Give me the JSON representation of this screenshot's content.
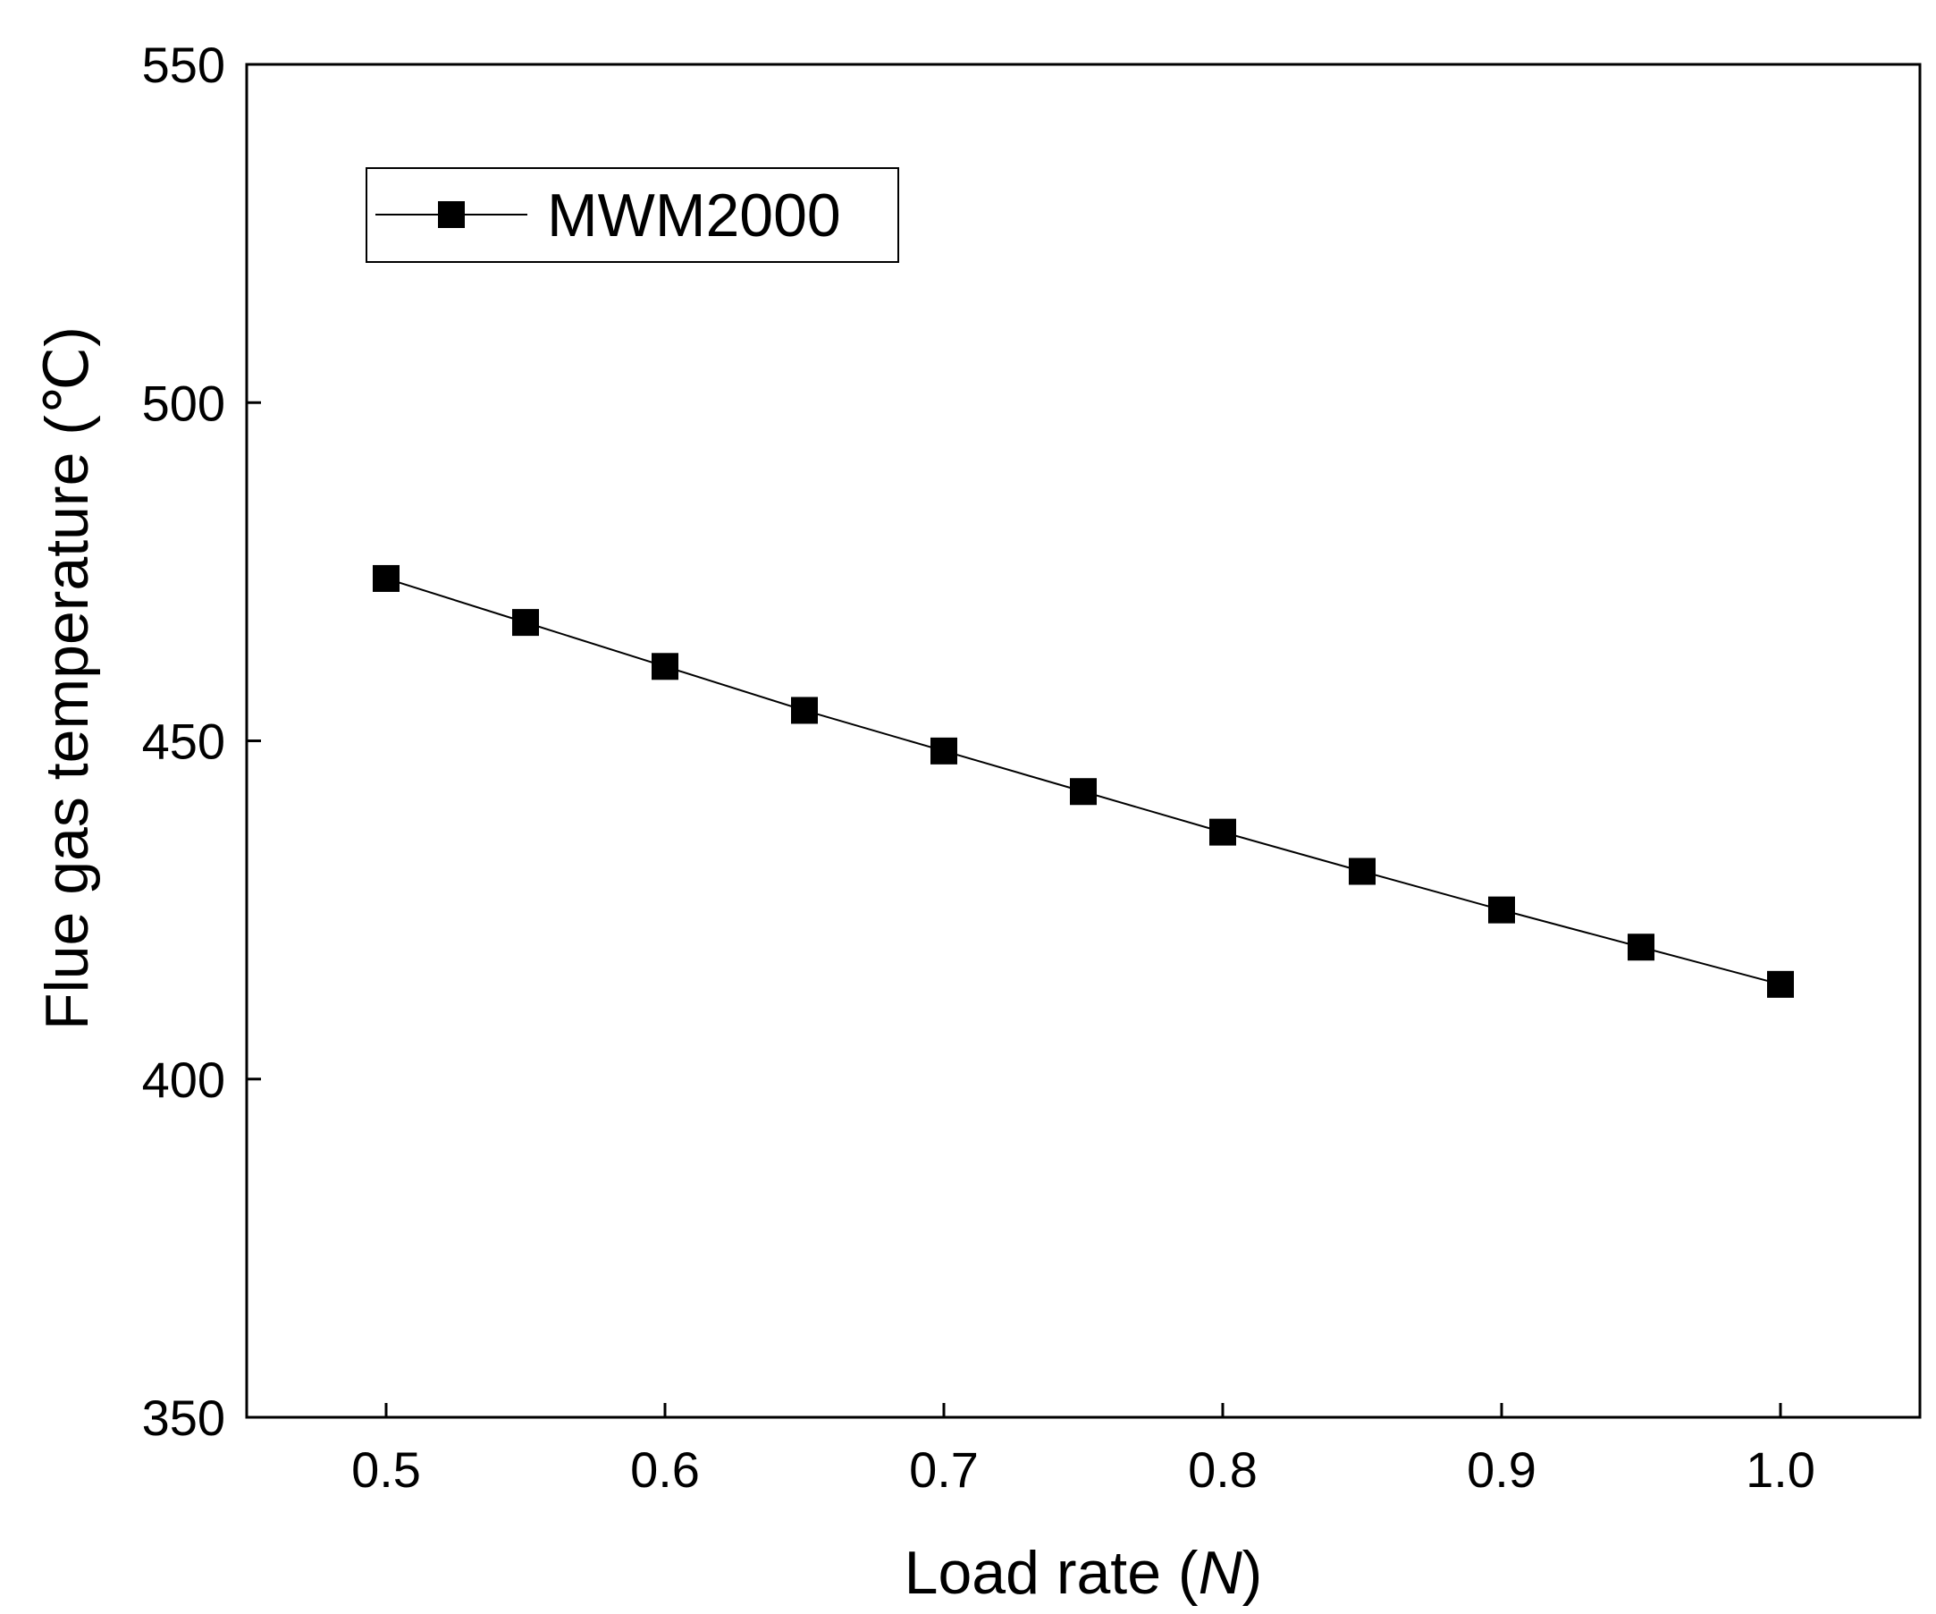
{
  "chart_data": {
    "type": "line",
    "title": "",
    "xlabel": "Load rate (",
    "xlabel_symbol": "N",
    "xlabel_close": ")",
    "ylabel": "Flue gas temperature (℃)",
    "xlim": [
      0.45,
      1.05
    ],
    "ylim": [
      350,
      550
    ],
    "xticks": [
      0.5,
      0.6,
      0.7,
      0.8,
      0.9,
      1.0
    ],
    "xtick_labels": [
      "0.5",
      "0.6",
      "0.7",
      "0.8",
      "0.9",
      "1.0"
    ],
    "yticks": [
      350,
      400,
      450,
      500,
      550
    ],
    "ytick_labels": [
      "350",
      "400",
      "450",
      "500",
      "550"
    ],
    "legend_position": "top-left",
    "grid": false,
    "series": [
      {
        "name": "MWM2000",
        "marker": "square",
        "color": "#000000",
        "x": [
          0.5,
          0.55,
          0.6,
          0.65,
          0.7,
          0.75,
          0.8,
          0.85,
          0.9,
          0.95,
          1.0
        ],
        "y": [
          474,
          467.5,
          461,
          454.5,
          448.5,
          442.5,
          436.5,
          430.7,
          425,
          419.5,
          414
        ]
      }
    ]
  }
}
